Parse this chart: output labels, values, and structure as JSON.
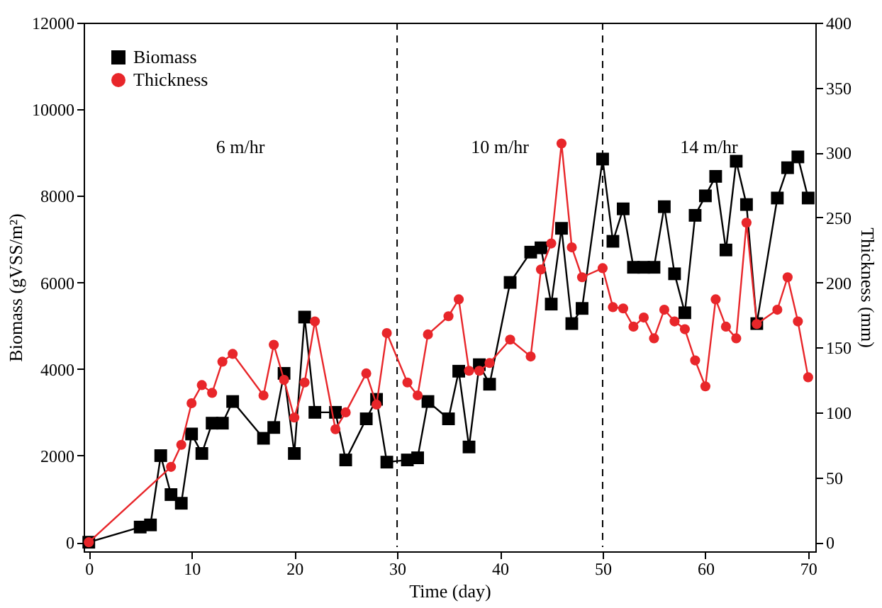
{
  "chart_data": {
    "type": "line",
    "xlabel": "Time (day)",
    "ylabel": "Biomass (gVSS/m²)",
    "y2label": "Thickness (mm)",
    "xlim": [
      -0.5,
      70.7
    ],
    "xticks": [
      0,
      10,
      20,
      30,
      40,
      50,
      60,
      70
    ],
    "ylim": [
      -210,
      12000
    ],
    "yticks": [
      0,
      2000,
      4000,
      6000,
      8000,
      10000,
      12000
    ],
    "y2lim": [
      -7,
      400
    ],
    "y2ticks": [
      0,
      50,
      100,
      150,
      200,
      250,
      300,
      350,
      400
    ],
    "grid": false,
    "legend": "top left",
    "ref_lines": [
      {
        "axis": "x",
        "value": 30,
        "label": null,
        "line_style": "dashed",
        "color": "#000000"
      },
      {
        "axis": "x",
        "value": 50,
        "label": null,
        "line_style": "dashed",
        "color": "#000000"
      }
    ],
    "annotations": [
      "6 m/hr",
      "10 m/hr",
      "14 m/hr"
    ],
    "series": [
      {
        "name": "Biomass",
        "color": "#000000",
        "marker": "square",
        "line_style": "solid",
        "x": [
          0,
          5,
          6,
          7,
          8,
          9,
          10,
          11,
          12,
          13,
          14,
          17,
          18,
          19,
          20,
          21,
          22,
          24,
          25,
          27,
          28,
          29,
          31,
          32,
          33,
          35,
          36,
          37,
          38,
          39,
          41,
          43,
          44,
          45,
          46,
          47,
          48,
          50,
          51,
          52,
          53,
          54,
          55,
          56,
          57,
          58,
          59,
          60,
          61,
          62,
          63,
          64,
          65,
          67,
          68,
          69,
          70
        ],
        "values": [
          0,
          350,
          400,
          2000,
          1100,
          900,
          2500,
          2050,
          2750,
          2750,
          3250,
          2400,
          2650,
          3900,
          2050,
          5200,
          3000,
          3000,
          1900,
          2850,
          3300,
          1850,
          1900,
          1950,
          3250,
          2850,
          3950,
          2200,
          4100,
          3650,
          6000,
          6700,
          6800,
          5500,
          7250,
          5050,
          5400,
          8850,
          6950,
          7700,
          6350,
          6350,
          6350,
          7750,
          6200,
          5300,
          7550,
          8000,
          8450,
          6750,
          8800,
          7800,
          5050,
          7950,
          8650,
          8900,
          7950
        ]
      },
      {
        "name": "Thickness",
        "color": "#e8262a",
        "marker": "circle",
        "line_style": "solid",
        "axis": "y2",
        "x": [
          0,
          8,
          9,
          10,
          11,
          12,
          13,
          14,
          17,
          18,
          19,
          20,
          21,
          22,
          24,
          25,
          27,
          28,
          29,
          31,
          32,
          33,
          35,
          36,
          37,
          38,
          39,
          41,
          43,
          44,
          45,
          46,
          47,
          48,
          50,
          51,
          52,
          53,
          54,
          55,
          56,
          57,
          58,
          59,
          60,
          61,
          62,
          63,
          64,
          65,
          67,
          68,
          69,
          70
        ],
        "values": [
          0,
          58,
          75,
          107,
          121,
          115,
          139,
          145,
          113,
          152,
          125,
          96,
          123,
          170,
          87,
          100,
          130,
          106,
          161,
          123,
          113,
          160,
          174,
          187,
          132,
          132,
          138,
          156,
          143,
          210,
          230,
          307,
          227,
          204,
          211,
          181,
          180,
          166,
          173,
          157,
          179,
          170,
          164,
          140,
          120,
          187,
          166,
          157,
          246,
          168,
          179,
          204,
          170,
          127
        ]
      }
    ]
  }
}
